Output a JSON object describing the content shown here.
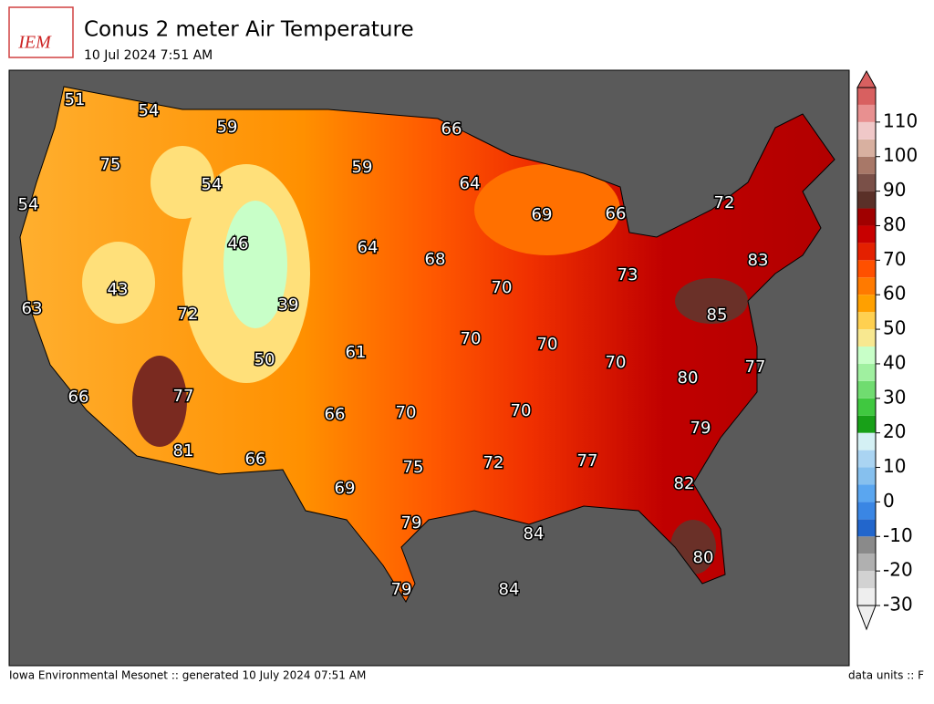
{
  "header": {
    "logo": "IEM",
    "title": "Conus 2 meter Air Temperature",
    "subtitle": "10 Jul 2024 7:51 AM"
  },
  "map_labels": [
    51,
    54,
    59,
    66,
    75,
    59,
    54,
    54,
    64,
    72,
    69,
    66,
    46,
    64,
    68,
    83,
    43,
    39,
    72,
    63,
    70,
    73,
    85,
    61,
    70,
    70,
    50,
    70,
    77,
    80,
    66,
    77,
    66,
    70,
    70,
    79,
    81,
    66,
    75,
    72,
    77,
    82,
    69,
    79,
    84,
    80,
    79,
    84
  ],
  "colorbar": {
    "lim": [
      -30,
      120
    ],
    "ticks": [
      -30,
      -20,
      -10,
      0,
      10,
      20,
      30,
      40,
      50,
      60,
      70,
      80,
      90,
      100,
      110
    ],
    "colors": [
      "#eeeeee",
      "#d2d2d2",
      "#b0b0b0",
      "#8a8a8a",
      "#2266cc",
      "#3a86e4",
      "#5aa6f0",
      "#86c0ee",
      "#aad4f2",
      "#d4f0f4",
      "#18a018",
      "#40c840",
      "#70dc70",
      "#a0f0a0",
      "#c8ffc8",
      "#f8e890",
      "#ffd050",
      "#ffa000",
      "#ff7a00",
      "#ff5000",
      "#e42000",
      "#c80000",
      "#a00000",
      "#5a3028",
      "#7a5048",
      "#a87868",
      "#d8b0a0",
      "#f0c8c8",
      "#e89090",
      "#d86060"
    ],
    "units": "data units :: F"
  },
  "footer": "Iowa Environmental Mesonet :: generated 10 July 2024 07:51 AM"
}
